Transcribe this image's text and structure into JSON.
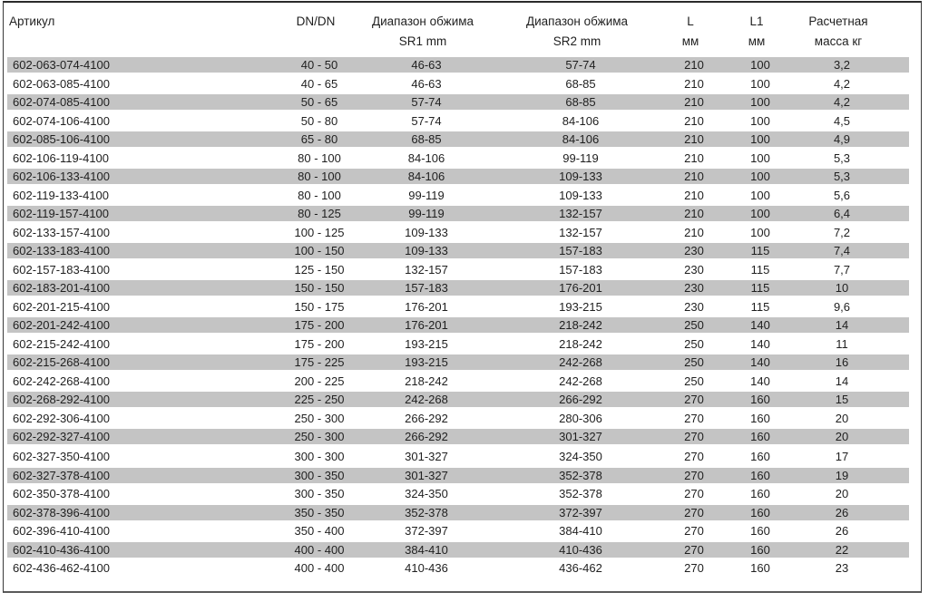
{
  "colors": {
    "stripe": "#c4c4c4",
    "frame_border": "#3a3a3a",
    "text": "#1f1f1f"
  },
  "table": {
    "headers": {
      "article": "Артикул",
      "dn": "DN/DN",
      "sr1_line1": "Диапазон обжима",
      "sr1_line2": "SR1 mm",
      "sr2_line1": "Диапазон обжима",
      "sr2_line2": "SR2 mm",
      "l_line1": "L",
      "l_line2": "мм",
      "l1_line1": "L1",
      "l1_line2": "мм",
      "mass_line1": "Расчетная",
      "mass_line2": "масса кг"
    },
    "rows": [
      {
        "article": "602-063-074-4100",
        "dn": "40 - 50",
        "sr1": "46-63",
        "sr2": "57-74",
        "l": "210",
        "l1": "100",
        "mass": "3,2",
        "shaded": true,
        "gap_before": false
      },
      {
        "article": "602-063-085-4100",
        "dn": "40 - 65",
        "sr1": "46-63",
        "sr2": "68-85",
        "l": "210",
        "l1": "100",
        "mass": "4,2",
        "shaded": false,
        "gap_before": false
      },
      {
        "article": "602-074-085-4100",
        "dn": "50 - 65",
        "sr1": "57-74",
        "sr2": "68-85",
        "l": "210",
        "l1": "100",
        "mass": "4,2",
        "shaded": true,
        "gap_before": false
      },
      {
        "article": "602-074-106-4100",
        "dn": "50 - 80",
        "sr1": "57-74",
        "sr2": "84-106",
        "l": "210",
        "l1": "100",
        "mass": "4,5",
        "shaded": false,
        "gap_before": false
      },
      {
        "article": "602-085-106-4100",
        "dn": "65 - 80",
        "sr1": "68-85",
        "sr2": "84-106",
        "l": "210",
        "l1": "100",
        "mass": "4,9",
        "shaded": true,
        "gap_before": false
      },
      {
        "article": "602-106-119-4100",
        "dn": "80 - 100",
        "sr1": "84-106",
        "sr2": "99-119",
        "l": "210",
        "l1": "100",
        "mass": "5,3",
        "shaded": false,
        "gap_before": false
      },
      {
        "article": "602-106-133-4100",
        "dn": "80 - 100",
        "sr1": "84-106",
        "sr2": "109-133",
        "l": "210",
        "l1": "100",
        "mass": "5,3",
        "shaded": true,
        "gap_before": false
      },
      {
        "article": "602-119-133-4100",
        "dn": "80 - 100",
        "sr1": "99-119",
        "sr2": "109-133",
        "l": "210",
        "l1": "100",
        "mass": "5,6",
        "shaded": false,
        "gap_before": false
      },
      {
        "article": "602-119-157-4100",
        "dn": "80 - 125",
        "sr1": "99-119",
        "sr2": "132-157",
        "l": "210",
        "l1": "100",
        "mass": "6,4",
        "shaded": true,
        "gap_before": false
      },
      {
        "article": "602-133-157-4100",
        "dn": "100 - 125",
        "sr1": "109-133",
        "sr2": "132-157",
        "l": "210",
        "l1": "100",
        "mass": "7,2",
        "shaded": false,
        "gap_before": false
      },
      {
        "article": "602-133-183-4100",
        "dn": "100 - 150",
        "sr1": "109-133",
        "sr2": "157-183",
        "l": "230",
        "l1": "115",
        "mass": "7,4",
        "shaded": true,
        "gap_before": false
      },
      {
        "article": "602-157-183-4100",
        "dn": "125 - 150",
        "sr1": "132-157",
        "sr2": "157-183",
        "l": "230",
        "l1": "115",
        "mass": "7,7",
        "shaded": false,
        "gap_before": false
      },
      {
        "article": "602-183-201-4100",
        "dn": "150 - 150",
        "sr1": "157-183",
        "sr2": "176-201",
        "l": "230",
        "l1": "115",
        "mass": "10",
        "shaded": true,
        "gap_before": false
      },
      {
        "article": "602-201-215-4100",
        "dn": "150 - 175",
        "sr1": "176-201",
        "sr2": "193-215",
        "l": "230",
        "l1": "115",
        "mass": "9,6",
        "shaded": false,
        "gap_before": false
      },
      {
        "article": "602-201-242-4100",
        "dn": "175 - 200",
        "sr1": "176-201",
        "sr2": "218-242",
        "l": "250",
        "l1": "140",
        "mass": "14",
        "shaded": true,
        "gap_before": false
      },
      {
        "article": "602-215-242-4100",
        "dn": "175 - 200",
        "sr1": "193-215",
        "sr2": "218-242",
        "l": "250",
        "l1": "140",
        "mass": "11",
        "shaded": false,
        "gap_before": false
      },
      {
        "article": "602-215-268-4100",
        "dn": "175 - 225",
        "sr1": "193-215",
        "sr2": "242-268",
        "l": "250",
        "l1": "140",
        "mass": "16",
        "shaded": true,
        "gap_before": false
      },
      {
        "article": "602-242-268-4100",
        "dn": "200 - 225",
        "sr1": "218-242",
        "sr2": "242-268",
        "l": "250",
        "l1": "140",
        "mass": "14",
        "shaded": false,
        "gap_before": false
      },
      {
        "article": "602-268-292-4100",
        "dn": "225 - 250",
        "sr1": "242-268",
        "sr2": "266-292",
        "l": "270",
        "l1": "160",
        "mass": "15",
        "shaded": true,
        "gap_before": false
      },
      {
        "article": "602-292-306-4100",
        "dn": "250 - 300",
        "sr1": "266-292",
        "sr2": "280-306",
        "l": "270",
        "l1": "160",
        "mass": "20",
        "shaded": false,
        "gap_before": false
      },
      {
        "article": "602-292-327-4100",
        "dn": "250 - 300",
        "sr1": "266-292",
        "sr2": "301-327",
        "l": "270",
        "l1": "160",
        "mass": "20",
        "shaded": true,
        "gap_before": false
      },
      {
        "article": "602-327-350-4100",
        "dn": "300 - 300",
        "sr1": "301-327",
        "sr2": "324-350",
        "l": "270",
        "l1": "160",
        "mass": "17",
        "shaded": false,
        "gap_before": true
      },
      {
        "article": "602-327-378-4100",
        "dn": "300 - 350",
        "sr1": "301-327",
        "sr2": "352-378",
        "l": "270",
        "l1": "160",
        "mass": "19",
        "shaded": true,
        "gap_before": false
      },
      {
        "article": "602-350-378-4100",
        "dn": "300 - 350",
        "sr1": "324-350",
        "sr2": "352-378",
        "l": "270",
        "l1": "160",
        "mass": "20",
        "shaded": false,
        "gap_before": false
      },
      {
        "article": "602-378-396-4100",
        "dn": "350 - 350",
        "sr1": "352-378",
        "sr2": "372-397",
        "l": "270",
        "l1": "160",
        "mass": "26",
        "shaded": true,
        "gap_before": false
      },
      {
        "article": "602-396-410-4100",
        "dn": "350 - 400",
        "sr1": "372-397",
        "sr2": "384-410",
        "l": "270",
        "l1": "160",
        "mass": "26",
        "shaded": false,
        "gap_before": false
      },
      {
        "article": "602-410-436-4100",
        "dn": "400 - 400",
        "sr1": "384-410",
        "sr2": "410-436",
        "l": "270",
        "l1": "160",
        "mass": "22",
        "shaded": true,
        "gap_before": false
      },
      {
        "article": "602-436-462-4100",
        "dn": "400 - 400",
        "sr1": "410-436",
        "sr2": "436-462",
        "l": "270",
        "l1": "160",
        "mass": "23",
        "shaded": false,
        "gap_before": false
      }
    ]
  }
}
